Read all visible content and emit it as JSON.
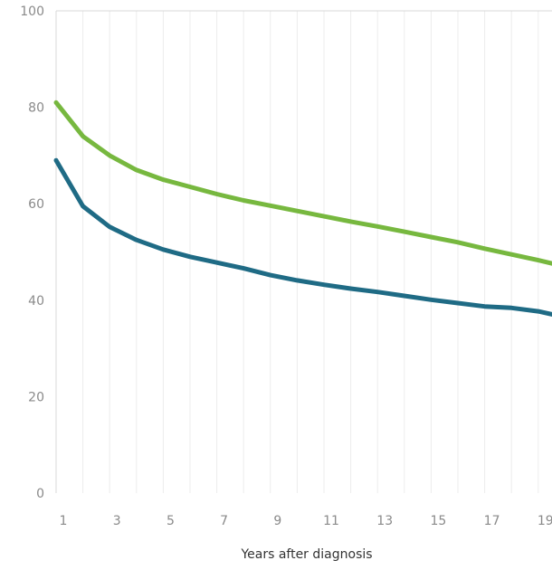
{
  "chart_data": {
    "type": "line",
    "title": "",
    "xlabel": "Years after diagnosis",
    "ylabel": "",
    "x": [
      1,
      2,
      3,
      4,
      5,
      6,
      7,
      8,
      9,
      10,
      11,
      12,
      13,
      14,
      15,
      16,
      17,
      18,
      19,
      20
    ],
    "xlim": [
      1,
      20
    ],
    "ylim": [
      0,
      100
    ],
    "x_ticks": [
      1,
      3,
      5,
      7,
      9,
      11,
      13,
      15,
      17,
      19
    ],
    "y_ticks": [
      0,
      20,
      40,
      60,
      80,
      100
    ],
    "grid": true,
    "series": [
      {
        "color": "#77b83f",
        "values": [
          81,
          74,
          70,
          67,
          65,
          63.5,
          62,
          60.7,
          59.6,
          58.5,
          57.4,
          56.3,
          55.3,
          54.2,
          53.1,
          52,
          50.7,
          49.5,
          48.3,
          47
        ]
      },
      {
        "color": "#1f6b85",
        "values": [
          69,
          59.5,
          55.2,
          52.5,
          50.5,
          49,
          47.8,
          46.6,
          45.2,
          44.1,
          43.2,
          42.4,
          41.7,
          40.9,
          40.1,
          39.4,
          38.7,
          38.4,
          37.7,
          36.5
        ]
      }
    ]
  }
}
